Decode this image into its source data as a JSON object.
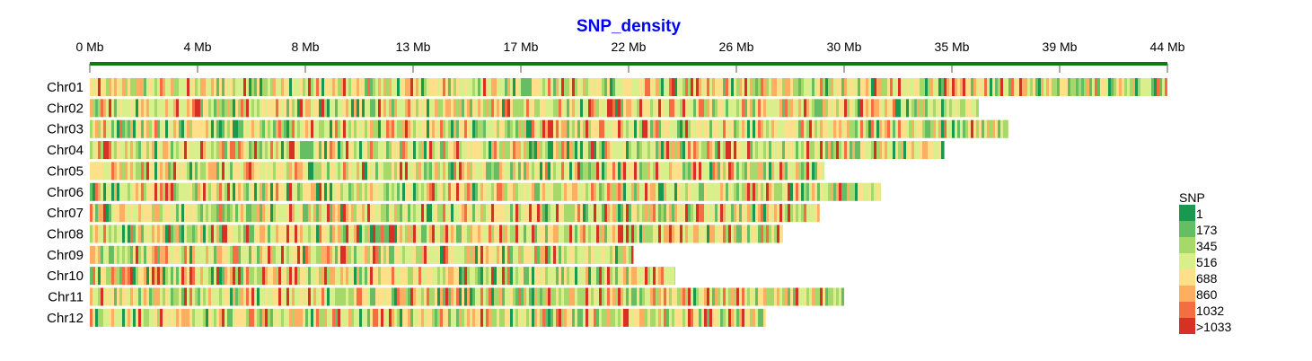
{
  "chart_data": {
    "type": "heatmap",
    "title": "SNP_density",
    "title_color": "#0000ff",
    "axis_color": "#0a7d0a",
    "x_ticks": [
      "0 Mb",
      "4 Mb",
      "8 Mb",
      "13 Mb",
      "17 Mb",
      "22 Mb",
      "26 Mb",
      "30 Mb",
      "35 Mb",
      "39 Mb",
      "44 Mb"
    ],
    "x_range_mb": [
      0,
      44
    ],
    "chromosomes": [
      {
        "name": "Chr01",
        "length_mb": 44.0
      },
      {
        "name": "Chr02",
        "length_mb": 36.3
      },
      {
        "name": "Chr03",
        "length_mb": 37.5
      },
      {
        "name": "Chr04",
        "length_mb": 34.9
      },
      {
        "name": "Chr05",
        "length_mb": 30.0
      },
      {
        "name": "Chr06",
        "length_mb": 32.3
      },
      {
        "name": "Chr07",
        "length_mb": 29.8
      },
      {
        "name": "Chr08",
        "length_mb": 28.3
      },
      {
        "name": "Chr09",
        "length_mb": 22.2
      },
      {
        "name": "Chr10",
        "length_mb": 23.9
      },
      {
        "name": "Chr11",
        "length_mb": 30.8
      },
      {
        "name": "Chr12",
        "length_mb": 27.6
      }
    ],
    "legend": {
      "title": "SNP",
      "items": [
        {
          "label": "1",
          "color": "#1a9850"
        },
        {
          "label": "173",
          "color": "#66bd63"
        },
        {
          "label": "345",
          "color": "#a6d96a"
        },
        {
          "label": "516",
          "color": "#d9ef8b"
        },
        {
          "label": "688",
          "color": "#fee08b"
        },
        {
          "label": "860",
          "color": "#fdae61"
        },
        {
          "label": "1032",
          "color": "#f46d43"
        },
        {
          "label": ">1033",
          "color": "#d73027"
        }
      ]
    }
  }
}
